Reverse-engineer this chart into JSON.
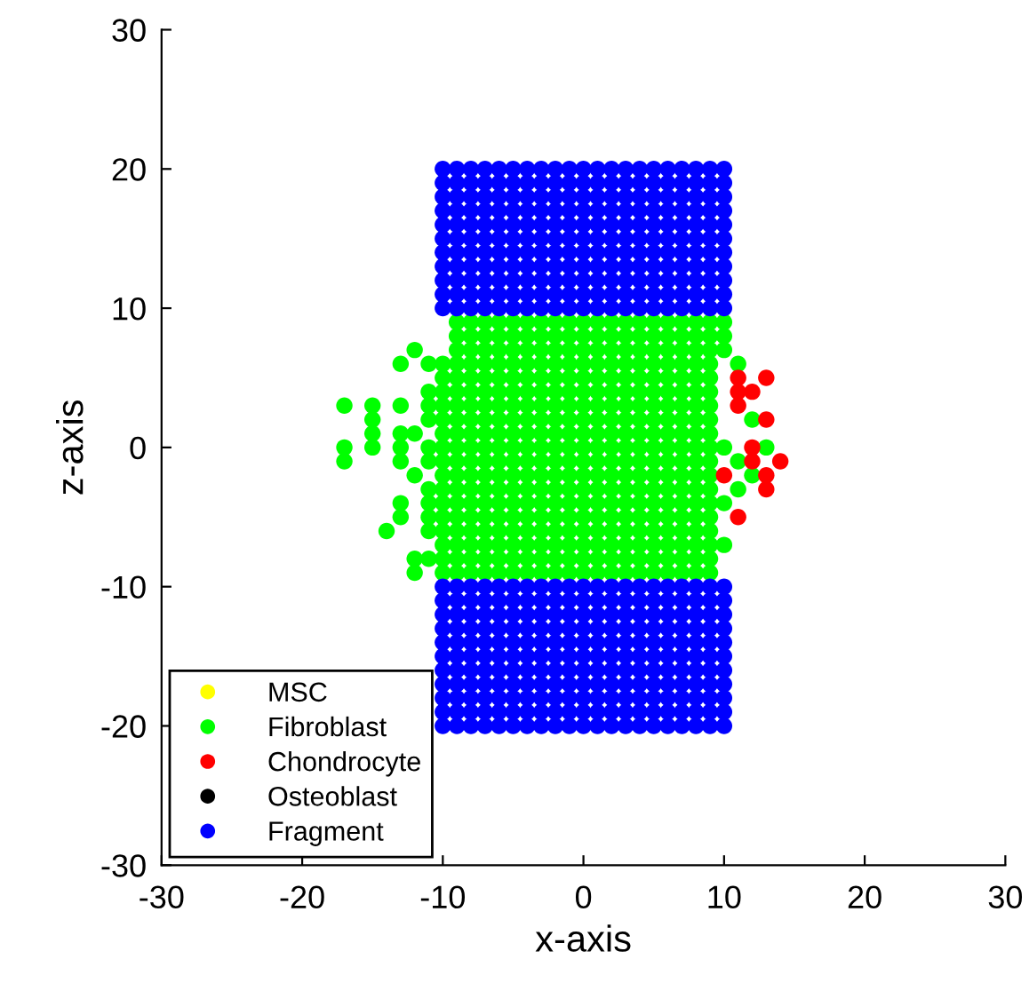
{
  "chart_data": {
    "type": "scatter",
    "xlabel": "x-axis",
    "ylabel": "z-axis",
    "xlim": [
      -30,
      30
    ],
    "ylim": [
      -30,
      30
    ],
    "xticks": [
      -30,
      -20,
      -10,
      0,
      10,
      20,
      30
    ],
    "yticks": [
      -30,
      -20,
      -10,
      0,
      10,
      20,
      30
    ],
    "grid": false,
    "legend": "bottom left",
    "marker": "circle",
    "series": [
      {
        "name": "MSC",
        "color": "#ffff00"
      },
      {
        "name": "Fibroblast",
        "color": "#00ff00",
        "x": [
          -9,
          -8,
          -7,
          -6,
          -5,
          -4,
          -3,
          -2,
          -1,
          0,
          1,
          2,
          3,
          4,
          5,
          6,
          7,
          8,
          9,
          -9,
          -8,
          -7,
          -6,
          -5,
          -4,
          -3,
          -2,
          -1,
          0,
          1,
          2,
          3,
          4,
          5,
          6,
          7,
          8,
          9,
          -9,
          -8,
          -7,
          -6,
          -5,
          -4,
          -3,
          -2,
          -1,
          0,
          1,
          2,
          3,
          4,
          5,
          6,
          7,
          8,
          9,
          -9,
          -8,
          -7,
          -6,
          -5,
          -4,
          -3,
          -2,
          -1,
          0,
          1,
          2,
          3,
          4,
          5,
          6,
          7,
          8,
          9,
          -9,
          -8,
          -7,
          -6,
          -5,
          -4,
          -3,
          -2,
          -1,
          0,
          1,
          2,
          3,
          4,
          5,
          6,
          7,
          8,
          9,
          -9,
          -8,
          -7,
          -6,
          -5,
          -4,
          -3,
          -2,
          -1,
          0,
          1,
          2,
          3,
          4,
          5,
          6,
          7,
          8,
          9,
          -9,
          -8,
          -7,
          -6,
          -5,
          -4,
          -3,
          -2,
          -1,
          0,
          1,
          2,
          3,
          4,
          5,
          6,
          7,
          8,
          9,
          -9,
          -8,
          -7,
          -6,
          -5,
          -4,
          -3,
          -2,
          -1,
          0,
          1,
          2,
          3,
          4,
          5,
          6,
          7,
          8,
          9,
          -9,
          -8,
          -7,
          -6,
          -5,
          -4,
          -3,
          -2,
          -1,
          0,
          1,
          2,
          3,
          4,
          5,
          6,
          7,
          8,
          9,
          -9,
          -8,
          -7,
          -6,
          -5,
          -4,
          -3,
          -2,
          -1,
          0,
          1,
          2,
          3,
          4,
          5,
          6,
          7,
          8,
          9,
          -9,
          -8,
          -7,
          -6,
          -5,
          -4,
          -3,
          -2,
          -1,
          0,
          1,
          2,
          3,
          4,
          5,
          6,
          7,
          8,
          9,
          -9,
          -8,
          -7,
          -6,
          -5,
          -4,
          -3,
          -2,
          -1,
          0,
          1,
          2,
          3,
          4,
          5,
          6,
          7,
          8,
          9,
          -9,
          -8,
          -7,
          -6,
          -5,
          -4,
          -3,
          -2,
          -1,
          0,
          1,
          2,
          3,
          4,
          5,
          6,
          7,
          8,
          9,
          -9,
          -8,
          -7,
          -6,
          -5,
          -4,
          -3,
          -2,
          -1,
          0,
          1,
          2,
          3,
          4,
          5,
          6,
          7,
          8,
          9,
          -9,
          -8,
          -7,
          -6,
          -5,
          -4,
          -3,
          -2,
          -1,
          0,
          1,
          2,
          3,
          4,
          5,
          6,
          7,
          8,
          9,
          -9,
          -8,
          -7,
          -6,
          -5,
          -4,
          -3,
          -2,
          -1,
          0,
          1,
          2,
          3,
          4,
          5,
          6,
          7,
          8,
          9,
          -9,
          -8,
          -7,
          -6,
          -5,
          -4,
          -3,
          -2,
          -1,
          0,
          1,
          2,
          3,
          4,
          5,
          6,
          7,
          8,
          9,
          -9,
          -8,
          -7,
          -6,
          -5,
          -4,
          -3,
          -2,
          -1,
          0,
          1,
          2,
          3,
          4,
          5,
          6,
          7,
          8,
          9,
          -9,
          -8,
          -7,
          -6,
          -5,
          -4,
          -3,
          -2,
          -1,
          0,
          1,
          2,
          3,
          4,
          5,
          6,
          7,
          8,
          9,
          -10,
          -10,
          -10,
          -10,
          -10,
          -10,
          -10,
          -10,
          -10,
          -10,
          -10,
          -10,
          -10,
          -10,
          -10,
          -10,
          -11,
          -11,
          -11,
          -11,
          -11,
          -11,
          -11,
          -11,
          -11,
          -11,
          -11,
          -12,
          -12,
          -12,
          -12,
          -12,
          -13,
          -13,
          -13,
          -13,
          -13,
          -13,
          -13,
          -14,
          -15,
          -15,
          -15,
          -15,
          -17,
          -17,
          -17,
          10,
          10,
          10,
          10,
          10,
          10,
          11,
          11,
          11,
          12,
          12,
          13
        ],
        "values": [
          9,
          9,
          9,
          9,
          9,
          9,
          9,
          9,
          9,
          9,
          9,
          9,
          9,
          9,
          9,
          9,
          9,
          9,
          9,
          8,
          8,
          8,
          8,
          8,
          8,
          8,
          8,
          8,
          8,
          8,
          8,
          8,
          8,
          8,
          8,
          8,
          8,
          8,
          7,
          7,
          7,
          7,
          7,
          7,
          7,
          7,
          7,
          7,
          7,
          7,
          7,
          7,
          7,
          7,
          7,
          7,
          7,
          6,
          6,
          6,
          6,
          6,
          6,
          6,
          6,
          6,
          6,
          6,
          6,
          6,
          6,
          6,
          6,
          6,
          6,
          6,
          5,
          5,
          5,
          5,
          5,
          5,
          5,
          5,
          5,
          5,
          5,
          5,
          5,
          5,
          5,
          5,
          5,
          5,
          5,
          4,
          4,
          4,
          4,
          4,
          4,
          4,
          4,
          4,
          4,
          4,
          4,
          4,
          4,
          4,
          4,
          4,
          4,
          4,
          3,
          3,
          3,
          3,
          3,
          3,
          3,
          3,
          3,
          3,
          3,
          3,
          3,
          3,
          3,
          3,
          3,
          3,
          3,
          2,
          2,
          2,
          2,
          2,
          2,
          2,
          2,
          2,
          2,
          2,
          2,
          2,
          2,
          2,
          2,
          2,
          2,
          2,
          1,
          1,
          1,
          1,
          1,
          1,
          1,
          1,
          1,
          1,
          1,
          1,
          1,
          1,
          1,
          1,
          1,
          1,
          1,
          0,
          0,
          0,
          0,
          0,
          0,
          0,
          0,
          0,
          0,
          0,
          0,
          0,
          0,
          0,
          0,
          0,
          0,
          0,
          -1,
          -1,
          -1,
          -1,
          -1,
          -1,
          -1,
          -1,
          -1,
          -1,
          -1,
          -1,
          -1,
          -1,
          -1,
          -1,
          -1,
          -1,
          -1,
          -2,
          -2,
          -2,
          -2,
          -2,
          -2,
          -2,
          -2,
          -2,
          -2,
          -2,
          -2,
          -2,
          -2,
          -2,
          -2,
          -2,
          -2,
          -2,
          -3,
          -3,
          -3,
          -3,
          -3,
          -3,
          -3,
          -3,
          -3,
          -3,
          -3,
          -3,
          -3,
          -3,
          -3,
          -3,
          -3,
          -3,
          -3,
          -4,
          -4,
          -4,
          -4,
          -4,
          -4,
          -4,
          -4,
          -4,
          -4,
          -4,
          -4,
          -4,
          -4,
          -4,
          -4,
          -4,
          -4,
          -4,
          -5,
          -5,
          -5,
          -5,
          -5,
          -5,
          -5,
          -5,
          -5,
          -5,
          -5,
          -5,
          -5,
          -5,
          -5,
          -5,
          -5,
          -5,
          -5,
          -6,
          -6,
          -6,
          -6,
          -6,
          -6,
          -6,
          -6,
          -6,
          -6,
          -6,
          -6,
          -6,
          -6,
          -6,
          -6,
          -6,
          -6,
          -6,
          -7,
          -7,
          -7,
          -7,
          -7,
          -7,
          -7,
          -7,
          -7,
          -7,
          -7,
          -7,
          -7,
          -7,
          -7,
          -7,
          -7,
          -7,
          -7,
          -8,
          -8,
          -8,
          -8,
          -8,
          -8,
          -8,
          -8,
          -8,
          -8,
          -8,
          -8,
          -8,
          -8,
          -8,
          -8,
          -8,
          -8,
          -8,
          -9,
          -9,
          -9,
          -9,
          -9,
          -9,
          -9,
          -9,
          -9,
          -9,
          -9,
          -9,
          -9,
          -9,
          -9,
          -9,
          -9,
          -9,
          -9,
          6,
          5,
          4,
          3,
          2,
          1,
          0,
          -1,
          -2,
          -3,
          -4,
          -5,
          -6,
          -7,
          -8,
          -9,
          6,
          4,
          3,
          2,
          0,
          -1,
          -3,
          -4,
          -5,
          -6,
          -8,
          7,
          1,
          -2,
          -8,
          -9,
          6,
          3,
          1,
          0,
          -1,
          -4,
          -5,
          -6,
          3,
          2,
          1,
          0,
          3,
          0,
          -1,
          9,
          8,
          7,
          0,
          -4,
          -7,
          6,
          -1,
          -3,
          2,
          -2,
          0
        ]
      },
      {
        "name": "Chondrocyte",
        "color": "#ff0000",
        "x": [
          11,
          11,
          11,
          12,
          13,
          13,
          12,
          12,
          14,
          13,
          13,
          10,
          11
        ],
        "values": [
          5,
          4,
          3,
          4,
          5,
          2,
          0,
          -1,
          -1,
          -2,
          -3,
          -2,
          -5
        ]
      },
      {
        "name": "Osteoblast",
        "color": "#000000"
      },
      {
        "name": "Fragment",
        "color": "#0000ff",
        "x": [
          -10,
          -9,
          -8,
          -7,
          -6,
          -5,
          -4,
          -3,
          -2,
          -1,
          0,
          1,
          2,
          3,
          4,
          5,
          6,
          7,
          8,
          9,
          10,
          -10,
          -9,
          -8,
          -7,
          -6,
          -5,
          -4,
          -3,
          -2,
          -1,
          0,
          1,
          2,
          3,
          4,
          5,
          6,
          7,
          8,
          9,
          10,
          -10,
          -9,
          -8,
          -7,
          -6,
          -5,
          -4,
          -3,
          -2,
          -1,
          0,
          1,
          2,
          3,
          4,
          5,
          6,
          7,
          8,
          9,
          10,
          -10,
          -9,
          -8,
          -7,
          -6,
          -5,
          -4,
          -3,
          -2,
          -1,
          0,
          1,
          2,
          3,
          4,
          5,
          6,
          7,
          8,
          9,
          10,
          -10,
          -9,
          -8,
          -7,
          -6,
          -5,
          -4,
          -3,
          -2,
          -1,
          0,
          1,
          2,
          3,
          4,
          5,
          6,
          7,
          8,
          9,
          10,
          -10,
          -9,
          -8,
          -7,
          -6,
          -5,
          -4,
          -3,
          -2,
          -1,
          0,
          1,
          2,
          3,
          4,
          5,
          6,
          7,
          8,
          9,
          10,
          -10,
          -9,
          -8,
          -7,
          -6,
          -5,
          -4,
          -3,
          -2,
          -1,
          0,
          1,
          2,
          3,
          4,
          5,
          6,
          7,
          8,
          9,
          10,
          -10,
          -9,
          -8,
          -7,
          -6,
          -5,
          -4,
          -3,
          -2,
          -1,
          0,
          1,
          2,
          3,
          4,
          5,
          6,
          7,
          8,
          9,
          10,
          -10,
          -9,
          -8,
          -7,
          -6,
          -5,
          -4,
          -3,
          -2,
          -1,
          0,
          1,
          2,
          3,
          4,
          5,
          6,
          7,
          8,
          9,
          10,
          -10,
          -9,
          -8,
          -7,
          -6,
          -5,
          -4,
          -3,
          -2,
          -1,
          0,
          1,
          2,
          3,
          4,
          5,
          6,
          7,
          8,
          9,
          10,
          -10,
          -9,
          -8,
          -7,
          -6,
          -5,
          -4,
          -3,
          -2,
          -1,
          0,
          1,
          2,
          3,
          4,
          5,
          6,
          7,
          8,
          9,
          10,
          -10,
          -9,
          -8,
          -7,
          -6,
          -5,
          -4,
          -3,
          -2,
          -1,
          0,
          1,
          2,
          3,
          4,
          5,
          6,
          7,
          8,
          9,
          10,
          -10,
          -9,
          -8,
          -7,
          -6,
          -5,
          -4,
          -3,
          -2,
          -1,
          0,
          1,
          2,
          3,
          4,
          5,
          6,
          7,
          8,
          9,
          10,
          -10,
          -9,
          -8,
          -7,
          -6,
          -5,
          -4,
          -3,
          -2,
          -1,
          0,
          1,
          2,
          3,
          4,
          5,
          6,
          7,
          8,
          9,
          10,
          -10,
          -9,
          -8,
          -7,
          -6,
          -5,
          -4,
          -3,
          -2,
          -1,
          0,
          1,
          2,
          3,
          4,
          5,
          6,
          7,
          8,
          9,
          10,
          -10,
          -9,
          -8,
          -7,
          -6,
          -5,
          -4,
          -3,
          -2,
          -1,
          0,
          1,
          2,
          3,
          4,
          5,
          6,
          7,
          8,
          9,
          10,
          -10,
          -9,
          -8,
          -7,
          -6,
          -5,
          -4,
          -3,
          -2,
          -1,
          0,
          1,
          2,
          3,
          4,
          5,
          6,
          7,
          8,
          9,
          10,
          -10,
          -9,
          -8,
          -7,
          -6,
          -5,
          -4,
          -3,
          -2,
          -1,
          0,
          1,
          2,
          3,
          4,
          5,
          6,
          7,
          8,
          9,
          10,
          -10,
          -9,
          -8,
          -7,
          -6,
          -5,
          -4,
          -3,
          -2,
          -1,
          0,
          1,
          2,
          3,
          4,
          5,
          6,
          7,
          8,
          9,
          10,
          -10,
          -9,
          -8,
          -7,
          -6,
          -5,
          -4,
          -3,
          -2,
          -1,
          0,
          1,
          2,
          3,
          4,
          5,
          6,
          7,
          8,
          9,
          10,
          -10,
          -9,
          -8,
          -7,
          -6,
          -5,
          -4,
          -3,
          -2,
          -1,
          0,
          1,
          2,
          3,
          4,
          5,
          6,
          7,
          8,
          9,
          10,
          -10,
          -9,
          -8,
          -7,
          -6,
          -5,
          -4,
          -3,
          -2,
          -1,
          0,
          1,
          2,
          3,
          4,
          5,
          6,
          7,
          8,
          9,
          10
        ],
        "values": [
          20,
          20,
          20,
          20,
          20,
          20,
          20,
          20,
          20,
          20,
          20,
          20,
          20,
          20,
          20,
          20,
          20,
          20,
          20,
          20,
          20,
          19,
          19,
          19,
          19,
          19,
          19,
          19,
          19,
          19,
          19,
          19,
          19,
          19,
          19,
          19,
          19,
          19,
          19,
          19,
          19,
          19,
          18,
          18,
          18,
          18,
          18,
          18,
          18,
          18,
          18,
          18,
          18,
          18,
          18,
          18,
          18,
          18,
          18,
          18,
          18,
          18,
          18,
          17,
          17,
          17,
          17,
          17,
          17,
          17,
          17,
          17,
          17,
          17,
          17,
          17,
          17,
          17,
          17,
          17,
          17,
          17,
          17,
          17,
          16,
          16,
          16,
          16,
          16,
          16,
          16,
          16,
          16,
          16,
          16,
          16,
          16,
          16,
          16,
          16,
          16,
          16,
          16,
          16,
          16,
          15,
          15,
          15,
          15,
          15,
          15,
          15,
          15,
          15,
          15,
          15,
          15,
          15,
          15,
          15,
          15,
          15,
          15,
          15,
          15,
          15,
          14,
          14,
          14,
          14,
          14,
          14,
          14,
          14,
          14,
          14,
          14,
          14,
          14,
          14,
          14,
          14,
          14,
          14,
          14,
          14,
          14,
          13,
          13,
          13,
          13,
          13,
          13,
          13,
          13,
          13,
          13,
          13,
          13,
          13,
          13,
          13,
          13,
          13,
          13,
          13,
          13,
          13,
          12,
          12,
          12,
          12,
          12,
          12,
          12,
          12,
          12,
          12,
          12,
          12,
          12,
          12,
          12,
          12,
          12,
          12,
          12,
          12,
          12,
          11,
          11,
          11,
          11,
          11,
          11,
          11,
          11,
          11,
          11,
          11,
          11,
          11,
          11,
          11,
          11,
          11,
          11,
          11,
          11,
          11,
          10,
          10,
          10,
          10,
          10,
          10,
          10,
          10,
          10,
          10,
          10,
          10,
          10,
          10,
          10,
          10,
          10,
          10,
          10,
          10,
          10,
          -10,
          -10,
          -10,
          -10,
          -10,
          -10,
          -10,
          -10,
          -10,
          -10,
          -10,
          -10,
          -10,
          -10,
          -10,
          -10,
          -10,
          -10,
          -10,
          -10,
          -10,
          -11,
          -11,
          -11,
          -11,
          -11,
          -11,
          -11,
          -11,
          -11,
          -11,
          -11,
          -11,
          -11,
          -11,
          -11,
          -11,
          -11,
          -11,
          -11,
          -11,
          -11,
          -12,
          -12,
          -12,
          -12,
          -12,
          -12,
          -12,
          -12,
          -12,
          -12,
          -12,
          -12,
          -12,
          -12,
          -12,
          -12,
          -12,
          -12,
          -12,
          -12,
          -12,
          -13,
          -13,
          -13,
          -13,
          -13,
          -13,
          -13,
          -13,
          -13,
          -13,
          -13,
          -13,
          -13,
          -13,
          -13,
          -13,
          -13,
          -13,
          -13,
          -13,
          -13,
          -14,
          -14,
          -14,
          -14,
          -14,
          -14,
          -14,
          -14,
          -14,
          -14,
          -14,
          -14,
          -14,
          -14,
          -14,
          -14,
          -14,
          -14,
          -14,
          -14,
          -14,
          -15,
          -15,
          -15,
          -15,
          -15,
          -15,
          -15,
          -15,
          -15,
          -15,
          -15,
          -15,
          -15,
          -15,
          -15,
          -15,
          -15,
          -15,
          -15,
          -15,
          -15,
          -16,
          -16,
          -16,
          -16,
          -16,
          -16,
          -16,
          -16,
          -16,
          -16,
          -16,
          -16,
          -16,
          -16,
          -16,
          -16,
          -16,
          -16,
          -16,
          -16,
          -16,
          -17,
          -17,
          -17,
          -17,
          -17,
          -17,
          -17,
          -17,
          -17,
          -17,
          -17,
          -17,
          -17,
          -17,
          -17,
          -17,
          -17,
          -17,
          -17,
          -17,
          -17,
          -18,
          -18,
          -18,
          -18,
          -18,
          -18,
          -18,
          -18,
          -18,
          -18,
          -18,
          -18,
          -18,
          -18,
          -18,
          -18,
          -18,
          -18,
          -18,
          -18,
          -18,
          -19,
          -19,
          -19,
          -19,
          -19,
          -19,
          -19,
          -19,
          -19,
          -19,
          -19,
          -19,
          -19,
          -19,
          -19,
          -19,
          -19,
          -19,
          -19,
          -19,
          -19,
          -20,
          -20,
          -20,
          -20,
          -20,
          -20,
          -20,
          -20,
          -20,
          -20,
          -20,
          -20,
          -20,
          -20,
          -20,
          -20,
          -20,
          -20,
          -20,
          -20,
          -20
        ]
      }
    ]
  }
}
